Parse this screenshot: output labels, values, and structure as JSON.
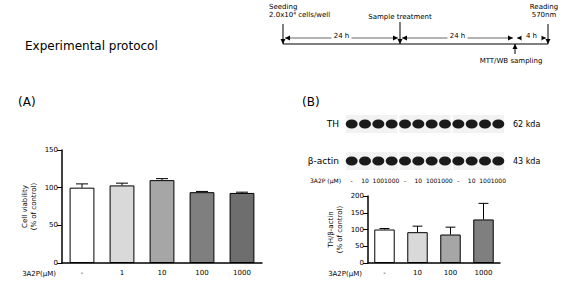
{
  "protocol": {
    "title": "Experimental protocol",
    "events": [
      "Seeding\n2.0x10⁴ cells/well",
      "Sample treatment",
      "MTT/WB sampling",
      "Reading\n570nm"
    ],
    "intervals": [
      "24 h",
      "24 h",
      "4 h"
    ]
  },
  "blot": {
    "rows": [
      {
        "label": "TH",
        "size": "62 kda"
      },
      {
        "label": "β-actin",
        "size": "43 kda"
      }
    ],
    "lane_axis_label": "3A2P (μM)",
    "lanes": [
      "-",
      "10",
      "100",
      "1000",
      "-",
      "10",
      "100",
      "1000",
      "-",
      "10",
      "100",
      "1000"
    ]
  },
  "chart_data": [
    {
      "type": "bar",
      "title": "(A)",
      "x_label": "3A2P(μM)",
      "y_label": "Cell viability\n(% of control)",
      "categories": [
        "-",
        "1",
        "10",
        "100",
        "1000"
      ],
      "values": [
        100,
        103,
        110,
        94,
        93
      ],
      "errors": [
        5,
        3,
        2,
        1,
        1
      ],
      "colors": [
        "#ffffff",
        "#d9d9d9",
        "#a6a6a6",
        "#7f7f7f",
        "#6e6e6e"
      ],
      "ylim": [
        0,
        150
      ],
      "yticks": [
        0,
        50,
        100,
        150
      ],
      "grid": false
    },
    {
      "type": "bar",
      "title": "(B)",
      "x_label": "3A2P(μM)",
      "y_label": "TH/β-actin\n(% of control)",
      "categories": [
        "-",
        "10",
        "100",
        "1000"
      ],
      "values": [
        100,
        92,
        85,
        130
      ],
      "errors": [
        3,
        18,
        22,
        48
      ],
      "colors": [
        "#ffffff",
        "#d9d9d9",
        "#a6a6a6",
        "#7f7f7f"
      ],
      "ylim": [
        0,
        200
      ],
      "yticks": [
        0,
        50,
        100,
        150,
        200
      ],
      "grid": false
    }
  ]
}
